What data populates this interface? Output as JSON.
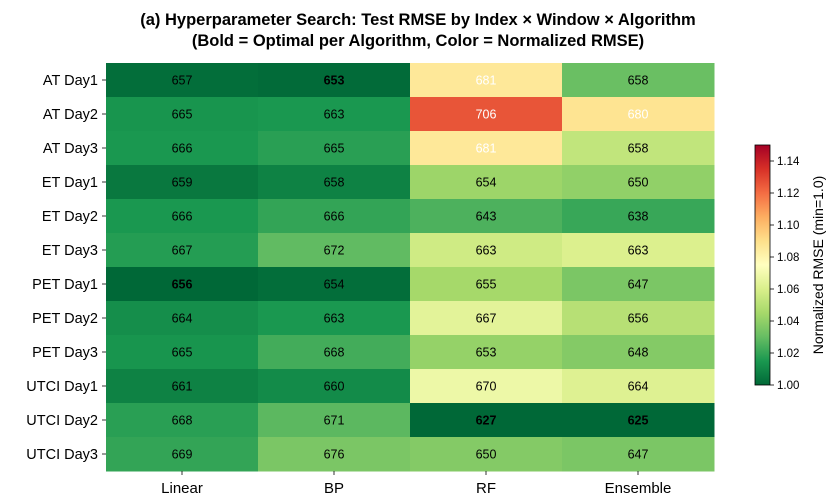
{
  "chart_data": {
    "type": "heatmap",
    "title": "(a) Hyperparameter Search: Test RMSE by Index × Window × Algorithm",
    "subtitle": "(Bold = Optimal per Algorithm, Color = Normalized RMSE)",
    "rows": [
      "AT Day1",
      "AT Day2",
      "AT Day3",
      "ET Day1",
      "ET Day2",
      "ET Day3",
      "PET Day1",
      "PET Day2",
      "PET Day3",
      "UTCI Day1",
      "UTCI Day2",
      "UTCI Day3"
    ],
    "columns": [
      "Linear",
      "BP",
      "RF",
      "Ensemble"
    ],
    "values": [
      [
        657,
        653,
        681,
        658
      ],
      [
        665,
        663,
        706,
        680
      ],
      [
        666,
        665,
        681,
        658
      ],
      [
        659,
        658,
        654,
        650
      ],
      [
        666,
        666,
        643,
        638
      ],
      [
        667,
        672,
        663,
        663
      ],
      [
        656,
        654,
        655,
        647
      ],
      [
        664,
        663,
        667,
        656
      ],
      [
        665,
        668,
        653,
        648
      ],
      [
        661,
        660,
        670,
        664
      ],
      [
        668,
        671,
        627,
        625
      ],
      [
        669,
        676,
        650,
        647
      ]
    ],
    "normalized": [
      [
        1.002,
        1.001,
        1.086,
        1.031
      ],
      [
        1.014,
        1.015,
        1.126,
        1.088
      ],
      [
        1.015,
        1.018,
        1.086,
        1.053
      ],
      [
        1.005,
        1.008,
        1.043,
        1.04
      ],
      [
        1.015,
        1.02,
        1.025,
        1.021
      ],
      [
        1.017,
        1.029,
        1.057,
        1.061
      ],
      [
        1.0,
        1.002,
        1.045,
        1.035
      ],
      [
        1.012,
        1.015,
        1.064,
        1.05
      ],
      [
        1.014,
        1.023,
        1.041,
        1.037
      ],
      [
        1.008,
        1.011,
        1.068,
        1.062
      ],
      [
        1.018,
        1.028,
        1.0,
        1.0
      ],
      [
        1.02,
        1.035,
        1.037,
        1.035
      ]
    ],
    "bold": [
      [
        false,
        true,
        false,
        false
      ],
      [
        false,
        false,
        false,
        false
      ],
      [
        false,
        false,
        false,
        false
      ],
      [
        false,
        false,
        false,
        false
      ],
      [
        false,
        false,
        false,
        false
      ],
      [
        false,
        false,
        false,
        false
      ],
      [
        true,
        false,
        false,
        false
      ],
      [
        false,
        false,
        false,
        false
      ],
      [
        false,
        false,
        false,
        false
      ],
      [
        false,
        false,
        false,
        false
      ],
      [
        false,
        false,
        true,
        true
      ],
      [
        false,
        false,
        false,
        false
      ]
    ],
    "white_text": [
      [
        false,
        false,
        true,
        false
      ],
      [
        false,
        false,
        true,
        true
      ],
      [
        false,
        false,
        true,
        false
      ],
      [
        false,
        false,
        false,
        false
      ],
      [
        false,
        false,
        false,
        false
      ],
      [
        false,
        false,
        false,
        false
      ],
      [
        false,
        false,
        false,
        false
      ],
      [
        false,
        false,
        false,
        false
      ],
      [
        false,
        false,
        false,
        false
      ],
      [
        false,
        false,
        false,
        false
      ],
      [
        false,
        false,
        false,
        false
      ],
      [
        false,
        false,
        false,
        false
      ]
    ],
    "colorbar": {
      "label": "Normalized RMSE (min=1.0)",
      "range": [
        1.0,
        1.15
      ],
      "ticks": [
        "1.00",
        "1.02",
        "1.04",
        "1.06",
        "1.08",
        "1.10",
        "1.12",
        "1.14"
      ],
      "colormap": "RdYlGn_r"
    }
  }
}
